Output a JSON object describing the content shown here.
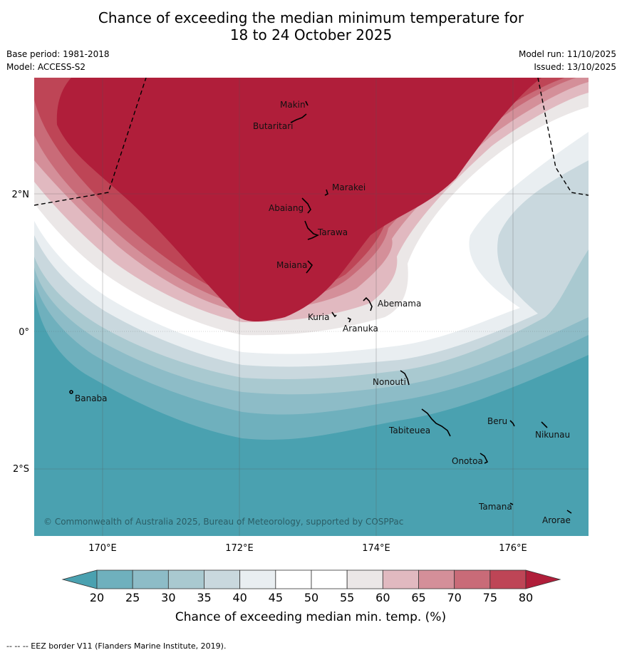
{
  "header": {
    "title_line1": "Chance of exceeding the median minimum temperature for",
    "title_line2": "18 to 24 October 2025",
    "base_period": "Base period: 1981-2018",
    "model": "Model: ACCESS-S2",
    "model_run": "Model run: 11/10/2025",
    "issued": "Issued: 13/10/2025"
  },
  "map": {
    "lon_labels": [
      "170°E",
      "172°E",
      "174°E",
      "176°E"
    ],
    "lat_labels": [
      "2°N",
      "0°",
      "2°S"
    ],
    "copyright": "© Commonwealth of Australia 2025, Bureau of Meteorology, supported by COSPPac",
    "places": [
      "Makin",
      "Butaritari",
      "Marakei",
      "Abaiang",
      "Tarawa",
      "Maiana",
      "Abemama",
      "Kuria",
      "Aranuka",
      "Nonouti",
      "Banaba",
      "Tabiteuea",
      "Beru",
      "Nikunau",
      "Onotoa",
      "Tamana",
      "Arorae"
    ]
  },
  "colorbar": {
    "ticks": [
      "20",
      "25",
      "30",
      "35",
      "40",
      "45",
      "50",
      "55",
      "60",
      "65",
      "70",
      "75",
      "80"
    ],
    "colors": [
      "#6fb0bd",
      "#8dbcc7",
      "#a9c9d0",
      "#c9d8de",
      "#e9eef1",
      "#ffffff",
      "#ffffff",
      "#ebe7e7",
      "#e1b9c0",
      "#d48f99",
      "#c96b78",
      "#be4556"
    ],
    "under_color": "#4aa1b0",
    "over_color": "#b01e3a",
    "label": "Chance of exceeding median min. temp. (%)"
  },
  "footer": "--  --  -- EEZ border V11 (Flanders Marine Institute, 2019)."
}
